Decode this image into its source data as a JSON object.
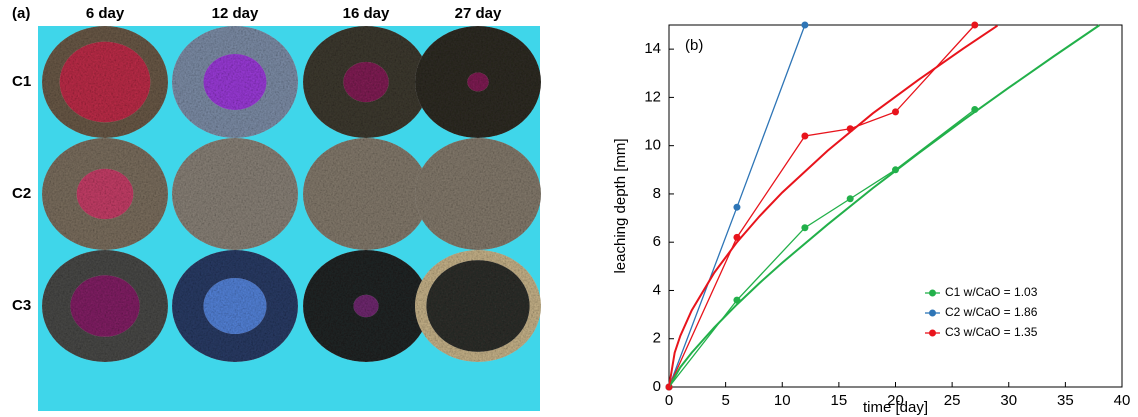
{
  "panel_a": {
    "label": "(a)",
    "columns": [
      "6 day",
      "12 day",
      "16 day",
      "27 day"
    ],
    "rows": [
      "C1",
      "C2",
      "C3"
    ]
  },
  "chart_data": {
    "type": "line",
    "annotation": "(b)",
    "x_label": "time [day]",
    "y_label": "leaching depth [mm]",
    "xlim": [
      0,
      40
    ],
    "xticks": [
      0,
      5,
      10,
      15,
      20,
      25,
      30,
      35,
      40
    ],
    "ylim": [
      0,
      15
    ],
    "yticks": [
      0,
      2,
      4,
      6,
      8,
      10,
      12,
      14
    ],
    "legend": "lower right",
    "series": [
      {
        "name": "C1 w/CaO = 1.03",
        "color": "#22b04a",
        "x": [
          0,
          6,
          12,
          16,
          20,
          27
        ],
        "values": [
          0,
          3.6,
          6.6,
          7.8,
          9.0,
          11.5
        ]
      },
      {
        "name": "C2 w/CaO = 1.86",
        "color": "#2e75b6",
        "x": [
          0,
          6,
          12
        ],
        "values": [
          0,
          7.45,
          15
        ]
      },
      {
        "name": "C3 w/CaO = 1.35",
        "color": "#e8141c",
        "x": [
          0,
          6,
          12,
          16,
          20,
          27
        ],
        "values": [
          0,
          6.2,
          10.4,
          10.7,
          11.4,
          15
        ]
      },
      {
        "color": "#22b04a",
        "x": [
          0,
          1,
          2,
          4,
          6,
          8,
          10,
          14,
          18,
          22,
          26,
          30,
          34,
          38
        ],
        "values": [
          0,
          0.82,
          1.42,
          2.47,
          3.42,
          4.31,
          5.15,
          6.73,
          8.24,
          9.67,
          11.06,
          12.4,
          13.71,
          14.99
        ]
      },
      {
        "color": "#e8141c",
        "x": [
          0,
          0.5,
          1,
          2,
          4,
          6,
          8,
          10,
          14,
          18,
          22,
          26,
          29
        ],
        "values": [
          0,
          1.42,
          2.12,
          3.17,
          4.74,
          6.0,
          7.08,
          8.06,
          9.79,
          11.34,
          12.72,
          14.03,
          14.97
        ]
      }
    ]
  }
}
